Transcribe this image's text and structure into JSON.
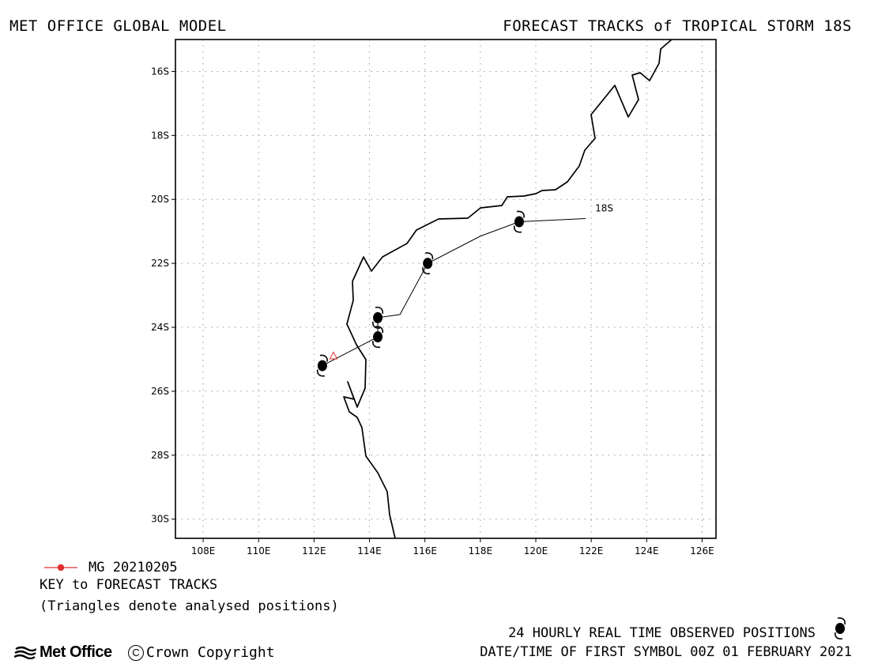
{
  "header": {
    "left": "MET OFFICE GLOBAL MODEL",
    "right": "FORECAST TRACKS of TROPICAL STORM 18S"
  },
  "map": {
    "lon_range_E": [
      107,
      126.5
    ],
    "lat_range_S": [
      15,
      30.6
    ],
    "x_ticks": [
      "108E",
      "110E",
      "112E",
      "114E",
      "116E",
      "118E",
      "120E",
      "122E",
      "124E",
      "126E"
    ],
    "y_ticks": [
      "16S",
      "18S",
      "20S",
      "22S",
      "24S",
      "26S",
      "28S",
      "30S"
    ],
    "grid": "dotted",
    "coastline_color": "#000000"
  },
  "storm": {
    "label": "18S",
    "observed_track": [
      {
        "lon": 121.8,
        "lat": -20.6
      },
      {
        "lon": 119.4,
        "lat": -20.7
      },
      {
        "lon": 118.0,
        "lat": -21.15
      },
      {
        "lon": 116.1,
        "lat": -22.0
      },
      {
        "lon": 115.1,
        "lat": -23.6
      },
      {
        "lon": 114.3,
        "lat": -23.7
      },
      {
        "lon": 114.3,
        "lat": -24.3
      },
      {
        "lon": 112.3,
        "lat": -25.2
      }
    ],
    "observed_positions": [
      {
        "lon": 119.4,
        "lat": -20.7
      },
      {
        "lon": 116.1,
        "lat": -22.0
      },
      {
        "lon": 114.3,
        "lat": -23.7
      },
      {
        "lon": 114.3,
        "lat": -24.3
      },
      {
        "lon": 112.3,
        "lat": -25.2
      }
    ],
    "forecast_run": {
      "name": "MG 20210205",
      "color": "#e03030",
      "analysed_position": {
        "lon": 112.7,
        "lat": -24.9
      }
    }
  },
  "key": {
    "run_label": "MG 20210205",
    "title": "KEY to FORECAST TRACKS",
    "note": "(Triangles denote analysed positions)"
  },
  "footer": {
    "observed_text": "24 HOURLY REAL TIME OBSERVED POSITIONS",
    "datetime_text": "DATE/TIME OF FIRST SYMBOL 00Z 01 FEBRUARY 2021",
    "logo_text": "Met Office",
    "copyright_symbol": "C",
    "copyright_text": "Crown Copyright"
  }
}
